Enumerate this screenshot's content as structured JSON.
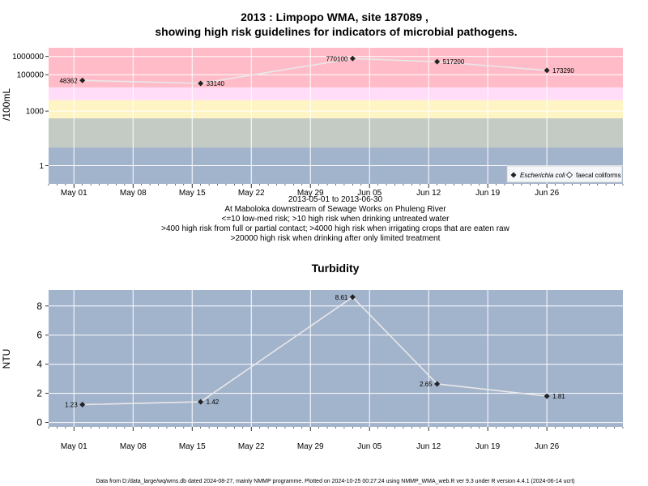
{
  "chart_data": [
    {
      "type": "line",
      "title": "2013 : Limpopo WMA, site 187089 ,",
      "subtitle": "showing high risk guidelines for indicators of microbial pathogens.",
      "ylabel": "/100mL",
      "yscale": "log",
      "y_ticks": [
        "1",
        "1000",
        "100000",
        "1000000"
      ],
      "x_ticks": [
        "May 01",
        "May 08",
        "May 15",
        "May 22",
        "May 29",
        "Jun 05",
        "Jun 12",
        "Jun 19",
        "Jun 26"
      ],
      "bands": [
        {
          "from": 0.1,
          "to": 10,
          "color": "#a2b3cc"
        },
        {
          "from": 10,
          "to": 400,
          "color": "#c4cbc4"
        },
        {
          "from": 400,
          "to": 4000,
          "color": "#fff5c4"
        },
        {
          "from": 4000,
          "to": 20000,
          "color": "#ffdcf8"
        },
        {
          "from": 20000,
          "to": 3000000,
          "color": "#ffbcc8"
        }
      ],
      "series": [
        {
          "name": "Escherichia coli",
          "marker": "filled-diamond",
          "points": [
            {
              "date": "2013-05-02",
              "value": 48362,
              "label": "48362"
            },
            {
              "date": "2013-05-16",
              "value": 33140,
              "label": "33140"
            },
            {
              "date": "2013-06-03",
              "value": 770100,
              "label": "770100"
            },
            {
              "date": "2013-06-13",
              "value": 517200,
              "label": "517200"
            },
            {
              "date": "2013-06-26",
              "value": 173290,
              "label": "173290"
            }
          ]
        },
        {
          "name": "faecal coliforms",
          "marker": "open-diamond",
          "points": []
        }
      ],
      "legend_position": "bottom-right",
      "grid": true,
      "xlabel_lines": [
        "2013-05-01 to 2013-06-30",
        "At Maboloka downstream of Sewage Works on Phuleng River",
        "<=10 low-med risk; >10 high risk when drinking untreated water",
        ">400 high risk from full or partial contact; >4000 high risk when irrigating crops that are eaten raw",
        ">20000 high risk when drinking after only limited treatment"
      ]
    },
    {
      "type": "line",
      "title": "Turbidity",
      "ylabel": "NTU",
      "ylim": [
        -0.3,
        9.1
      ],
      "y_ticks": [
        "0",
        "2",
        "4",
        "6",
        "8"
      ],
      "x_ticks": [
        "May 01",
        "May 08",
        "May 15",
        "May 22",
        "May 29",
        "Jun 05",
        "Jun 12",
        "Jun 19",
        "Jun 26"
      ],
      "series": [
        {
          "name": "",
          "points": [
            {
              "date": "2013-05-02",
              "value": 1.23,
              "label": "1.23"
            },
            {
              "date": "2013-05-16",
              "value": 1.42,
              "label": "1.42"
            },
            {
              "date": "2013-06-03",
              "value": 8.61,
              "label": "8.61"
            },
            {
              "date": "2013-06-13",
              "value": 2.65,
              "label": "2.65"
            },
            {
              "date": "2013-06-26",
              "value": 1.81,
              "label": "1.81"
            }
          ]
        }
      ],
      "grid": true
    }
  ],
  "footer": "Data from D:/data_large/wq/wms.db dated 2024-08-27, mainly NMMP programme. Plotted on 2024-10-25 00:27:24 using NMMP_WMA_web.R ver 9.3 under R version 4.4.1 (2024-06-14 ucrt)"
}
